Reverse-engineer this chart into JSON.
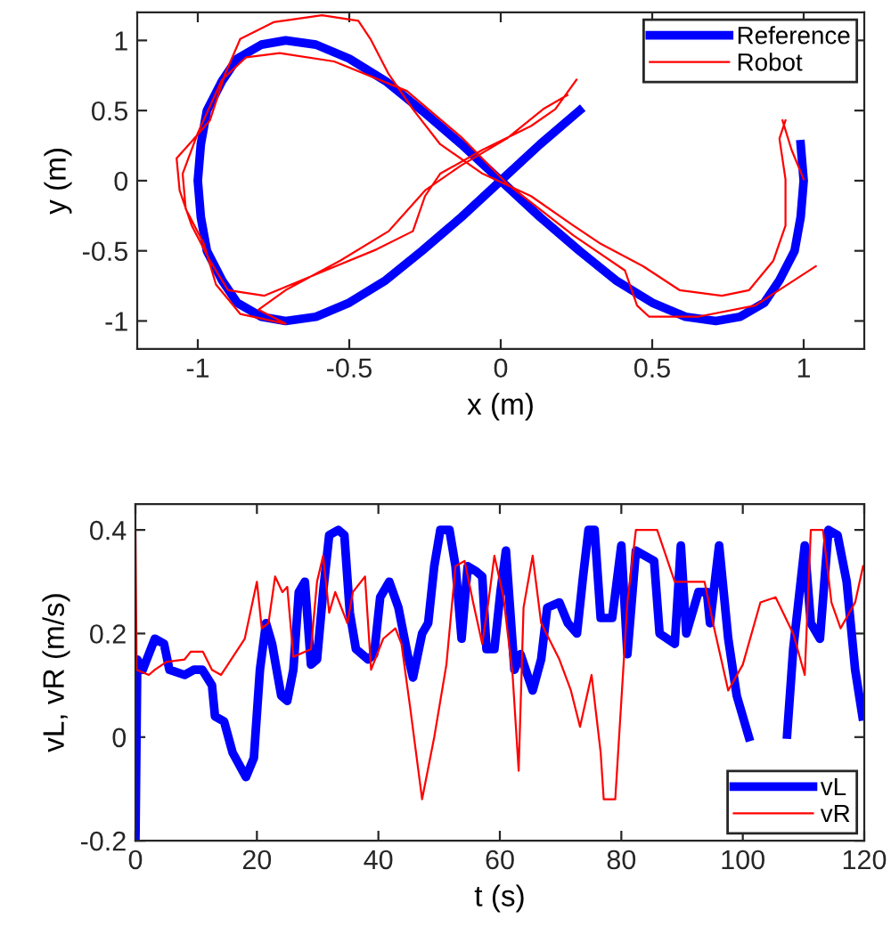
{
  "chart_data": [
    {
      "type": "line",
      "xlabel": "x (m)",
      "ylabel": "y (m)",
      "xlim": [
        -1.2,
        1.2
      ],
      "ylim": [
        -1.2,
        1.2
      ],
      "xticks": [
        -1,
        -0.5,
        0,
        0.5,
        1
      ],
      "yticks": [
        -1,
        -0.5,
        0,
        0.5,
        1
      ],
      "legend": "top right",
      "grid": false,
      "series": [
        {
          "name": "Reference",
          "color": "#0000ff",
          "x": [
            0,
            0.13,
            0.26,
            null,
            0.99,
            1,
            0.99,
            0.97,
            0.92,
            0.87,
            0.79,
            0.71,
            0.61,
            0.5,
            0.38,
            0.26,
            0.13,
            0,
            -0.13,
            -0.26,
            -0.38,
            -0.5,
            -0.61,
            -0.71,
            -0.79,
            -0.87,
            -0.92,
            -0.97,
            -0.99,
            -1,
            -0.99,
            -0.97,
            -0.92,
            -0.87,
            -0.79,
            -0.71,
            -0.61,
            -0.5,
            -0.38,
            -0.26,
            -0.13,
            0
          ],
          "values": [
            0,
            0.26,
            0.5,
            null,
            0.26,
            0,
            -0.26,
            -0.5,
            -0.71,
            -0.87,
            -0.97,
            -1,
            -0.97,
            -0.87,
            -0.71,
            -0.5,
            -0.26,
            0,
            0.26,
            0.5,
            0.71,
            0.87,
            0.97,
            1,
            0.97,
            0.87,
            0.71,
            0.5,
            0.26,
            0,
            -0.26,
            -0.5,
            -0.71,
            -0.87,
            -0.97,
            -1,
            -0.97,
            -0.87,
            -0.71,
            -0.5,
            -0.26,
            0
          ]
        },
        {
          "name": "Robot",
          "color": "#ff0000",
          "x": [
            1.0,
            0.96,
            0.93,
            null,
            0.25,
            0.18,
            0.1,
            -0.06,
            -0.2,
            -0.25,
            -0.29,
            -0.41,
            -0.59,
            -0.78,
            -0.9,
            -0.96,
            -1.02,
            -1.06,
            -1.07,
            -1.02,
            -0.96,
            -0.91,
            -0.86,
            -0.75,
            -0.59,
            -0.47,
            -0.43,
            -0.37,
            -0.29,
            -0.2,
            -0.06,
            0.1,
            0.24,
            0.33,
            0.47,
            0.59,
            0.73,
            0.82,
            0.9,
            0.94,
            0.94,
            0.92,
            0.94,
            null,
            0.22,
            0.14,
            0.02,
            -0.13,
            -0.25,
            -0.37,
            -0.53,
            -0.71,
            -0.8,
            -0.71,
            -0.86,
            -0.94,
            -0.98,
            -1.04,
            -1.05,
            -1.0,
            -0.92,
            -0.84,
            -0.73,
            -0.55,
            -0.31,
            -0.13,
            0.02,
            0.24,
            0.41,
            0.45,
            0.49,
            0.65,
            0.84,
            1.04
          ],
          "values": [
            0.01,
            0.22,
            0.43,
            null,
            0.72,
            0.51,
            0.39,
            0.22,
            0.05,
            -0.11,
            -0.36,
            -0.49,
            -0.65,
            -0.82,
            -0.78,
            -0.57,
            -0.32,
            -0.07,
            0.16,
            0.28,
            0.43,
            0.76,
            1.01,
            1.13,
            1.18,
            1.14,
            1.01,
            0.76,
            0.51,
            0.26,
            0.05,
            -0.11,
            -0.32,
            -0.45,
            -0.61,
            -0.78,
            -0.82,
            -0.78,
            -0.57,
            -0.32,
            0.01,
            0.3,
            0.43,
            null,
            0.61,
            0.51,
            0.3,
            0.11,
            -0.07,
            -0.36,
            -0.57,
            -0.78,
            -0.92,
            -1.02,
            -0.95,
            -0.74,
            -0.45,
            -0.2,
            0.05,
            0.34,
            0.72,
            0.88,
            0.91,
            0.85,
            0.64,
            0.31,
            -0.02,
            -0.39,
            -0.64,
            -0.89,
            -0.97,
            -0.97,
            -0.89,
            -0.61
          ]
        }
      ]
    },
    {
      "type": "line",
      "xlabel": "t (s)",
      "ylabel": "vL, vR (m/s)",
      "xlim": [
        0,
        120
      ],
      "ylim": [
        -0.2,
        0.45
      ],
      "xticks": [
        0,
        20,
        40,
        60,
        80,
        100,
        120
      ],
      "yticks": [
        -0.2,
        0,
        0.2,
        0.4
      ],
      "legend": "bottom right",
      "grid": false,
      "series": [
        {
          "name": "vL",
          "color": "#0000ff",
          "x": [
            0,
            0.3,
            1.2,
            3.2,
            4.7,
            5.6,
            8.1,
            9.6,
            11,
            12.6,
            13.1,
            14.6,
            16,
            18.2,
            19.5,
            20.5,
            21.5,
            22.5,
            24,
            25,
            26,
            26.9,
            27.9,
            28.9,
            29.9,
            30.9,
            31.9,
            33.4,
            34.4,
            35.3,
            36.3,
            38.3,
            39.3,
            40.3,
            41.8,
            43.3,
            44.8,
            45.7,
            47.2,
            48.2,
            49.2,
            50.2,
            51.7,
            52.7,
            53.7,
            54.7,
            56.1,
            57.1,
            57.8,
            59.1,
            60.1,
            61,
            62.4,
            63.4,
            65.4,
            66.8,
            67.8,
            69.8,
            71.2,
            72.7,
            73.7,
            74.6,
            75.6,
            76.6,
            78.5,
            80,
            81,
            82.4,
            85.4,
            86.3,
            88.8,
            89.8,
            90.7,
            92.7,
            94.1,
            94.6,
            96.1,
            97.6,
            99,
            101,
            104,
            107.3,
            108.3,
            110.2,
            111.2,
            112.7,
            114.1,
            115.6,
            117.1,
            118.5,
            119.7
          ],
          "values": [
            -0.2,
            0.15,
            0.13,
            0.19,
            0.18,
            0.13,
            0.12,
            0.13,
            0.13,
            0.1,
            0.04,
            0.03,
            -0.03,
            -0.077,
            -0.04,
            0.13,
            0.22,
            0.18,
            0.08,
            0.07,
            0.13,
            0.28,
            0.3,
            0.14,
            0.15,
            0.28,
            0.39,
            0.4,
            0.39,
            0.24,
            0.17,
            0.15,
            0.16,
            0.27,
            0.3,
            0.25,
            0.16,
            0.115,
            0.2,
            0.22,
            0.33,
            0.4,
            0.4,
            0.33,
            0.19,
            0.33,
            0.32,
            0.31,
            0.17,
            0.17,
            0.28,
            0.36,
            0.13,
            0.16,
            0.09,
            0.15,
            0.25,
            0.26,
            0.22,
            0.2,
            0.31,
            0.4,
            0.4,
            0.23,
            0.23,
            0.37,
            0.16,
            0.36,
            0.34,
            0.2,
            0.18,
            0.37,
            0.2,
            0.28,
            0.28,
            0.22,
            0.37,
            0.19,
            0.08,
            0.0,
            null,
            0.005,
            0.17,
            0.37,
            0.22,
            0.19,
            0.4,
            0.39,
            0.3,
            0.13,
            0.04
          ]
        },
        {
          "name": "vR",
          "color": "#ff0000",
          "x": [
            0,
            0.2,
            2.2,
            3.2,
            5.1,
            8.1,
            9.1,
            11.1,
            12.6,
            14.1,
            15.5,
            18,
            20,
            20.8,
            21.9,
            23,
            24.2,
            25,
            26,
            28.9,
            29.9,
            30.9,
            31.9,
            32.9,
            34.9,
            35.8,
            37.8,
            38.8,
            40.8,
            42.8,
            43.8,
            45.2,
            47.2,
            49.2,
            51.2,
            52.7,
            54.2,
            55.6,
            57.1,
            58.1,
            59.1,
            60.6,
            62.1,
            63.1,
            63.9,
            65.4,
            66.8,
            69.8,
            71.7,
            73.2,
            75.1,
            76.6,
            77.1,
            79,
            81,
            82.4,
            85.9,
            88.8,
            93.7,
            95.1,
            97.6,
            100,
            102.9,
            105.4,
            108.3,
            110.2,
            111.2,
            113.2,
            114.6,
            116.1,
            118.5,
            119.8
          ],
          "values": [
            0.4,
            0.13,
            0.12,
            0.13,
            0.145,
            0.15,
            0.165,
            0.165,
            0.13,
            0.12,
            0.145,
            0.19,
            0.3,
            0.21,
            0.22,
            0.31,
            0.28,
            0.29,
            0.155,
            0.17,
            0.3,
            0.35,
            0.24,
            0.28,
            0.22,
            0.28,
            0.31,
            0.13,
            0.19,
            0.21,
            0.18,
            0.06,
            -0.12,
            0.0,
            0.14,
            0.33,
            0.34,
            0.26,
            0.18,
            0.26,
            0.35,
            0.27,
            0.12,
            -0.065,
            0.25,
            0.35,
            0.22,
            0.15,
            0.09,
            0.02,
            0.12,
            -0.03,
            -0.12,
            -0.12,
            0.26,
            0.4,
            0.4,
            0.3,
            0.3,
            0.22,
            0.09,
            0.14,
            0.26,
            0.27,
            0.2,
            0.12,
            0.4,
            0.4,
            0.26,
            0.21,
            0.26,
            0.33
          ]
        }
      ]
    }
  ]
}
